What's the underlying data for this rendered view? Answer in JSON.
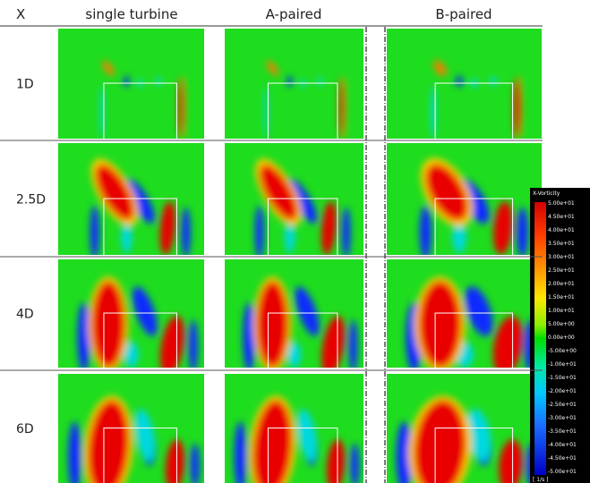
{
  "header": {
    "x_label": "X",
    "columns": [
      "single turbine",
      "A-paired",
      "B-paired"
    ]
  },
  "rows": [
    "1D",
    "2.5D",
    "4D",
    "6D"
  ],
  "colorbar": {
    "title": "X-Vorticity",
    "labels": [
      "5.00e+01",
      "4.50e+01",
      "4.00e+01",
      "3.50e+01",
      "3.00e+01",
      "2.50e+01",
      "2.00e+01",
      "1.50e+01",
      "1.00e+01",
      "5.00e+00",
      "0.00e+00",
      "-5.00e+00",
      "-1.00e+01",
      "-1.50e+01",
      "-2.00e+01",
      "-2.50e+01",
      "-3.00e+01",
      "-3.50e+01",
      "-4.00e+01",
      "-4.50e+01",
      "-5.00e+01"
    ],
    "unit": "[ 1/s ]"
  }
}
